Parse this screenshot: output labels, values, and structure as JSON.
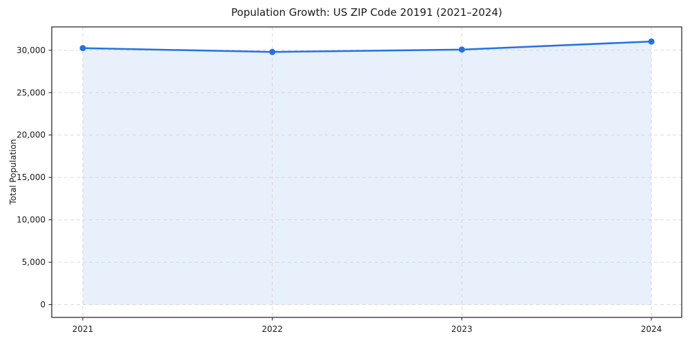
{
  "title": "Population Growth: US ZIP Code 20191 (2021–2024)",
  "chart_data": {
    "type": "line",
    "title": "Population Growth: US ZIP Code 20191 (2021–2024)",
    "xlabel": "",
    "ylabel": "Total Population",
    "x": [
      2021,
      2022,
      2023,
      2024
    ],
    "x_labels": [
      "2021",
      "2022",
      "2023",
      "2024"
    ],
    "series": [
      {
        "name": "Total Population",
        "values": [
          30250,
          29800,
          30080,
          31030
        ]
      }
    ],
    "ytick_values": [
      0,
      5000,
      10000,
      15000,
      20000,
      25000,
      30000
    ],
    "ytick_labels": [
      "0",
      "5,000",
      "10,000",
      "15,000",
      "20,000",
      "25,000",
      "30,000"
    ],
    "ylim": [
      -1500,
      32750
    ],
    "grid": true,
    "grid_style": "dashed",
    "legend_position": "none",
    "area_fill_to": 0,
    "colors": {
      "line": "#2272e0",
      "marker": "#2272e0",
      "area_fill": "#e8f0fb",
      "grid": "#d9d9d9",
      "spine": "#1a1a1a",
      "text": "#1a1a1a",
      "background": "#ffffff"
    }
  }
}
